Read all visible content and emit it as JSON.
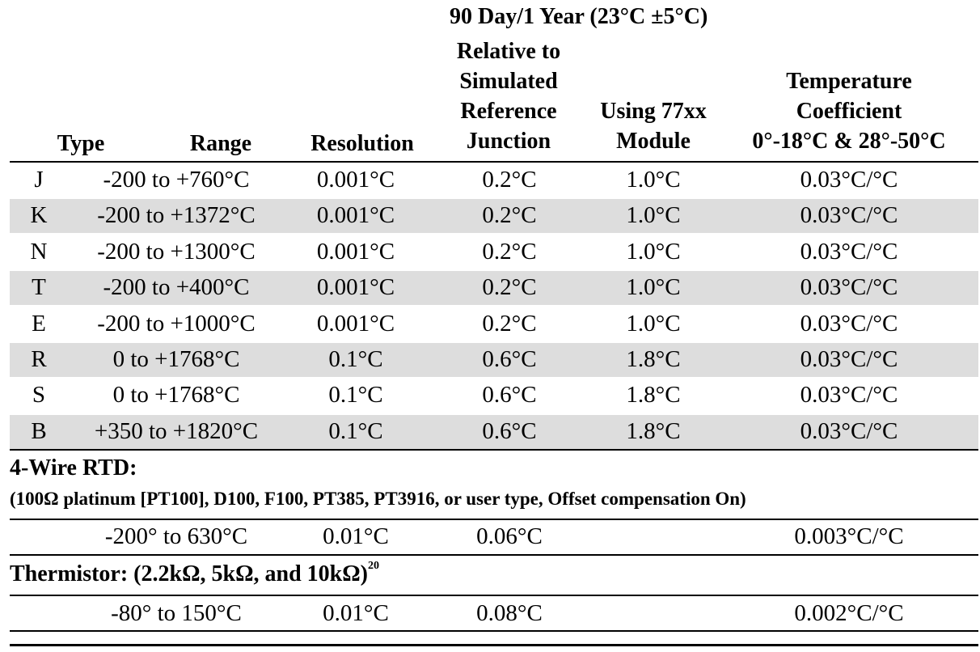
{
  "header": {
    "group_title": "90 Day/1 Year (23°C ±5°C)",
    "columns": {
      "type": "Type",
      "range": "Range",
      "resolution": "Resolution",
      "relative": [
        "Relative to",
        "Simulated",
        "Reference",
        "Junction"
      ],
      "module": [
        "Using 77xx",
        "Module"
      ],
      "tempco": [
        "Temperature",
        "Coefficient",
        "0°-18°C & 28°-50°C"
      ]
    }
  },
  "thermocouple_rows": [
    {
      "type": "J",
      "range": "-200 to +760°C",
      "resolution": "0.001°C",
      "relative": "0.2°C",
      "module": "1.0°C",
      "tempco": "0.03°C/°C",
      "shaded": false
    },
    {
      "type": "K",
      "range": "-200 to +1372°C",
      "resolution": "0.001°C",
      "relative": "0.2°C",
      "module": "1.0°C",
      "tempco": "0.03°C/°C",
      "shaded": true
    },
    {
      "type": "N",
      "range": "-200 to +1300°C",
      "resolution": "0.001°C",
      "relative": "0.2°C",
      "module": "1.0°C",
      "tempco": "0.03°C/°C",
      "shaded": false
    },
    {
      "type": "T",
      "range": "-200 to +400°C",
      "resolution": "0.001°C",
      "relative": "0.2°C",
      "module": "1.0°C",
      "tempco": "0.03°C/°C",
      "shaded": true
    },
    {
      "type": "E",
      "range": "-200 to +1000°C",
      "resolution": "0.001°C",
      "relative": "0.2°C",
      "module": "1.0°C",
      "tempco": "0.03°C/°C",
      "shaded": false
    },
    {
      "type": "R",
      "range": "0 to +1768°C",
      "resolution": "0.1°C",
      "relative": "0.6°C",
      "module": "1.8°C",
      "tempco": "0.03°C/°C",
      "shaded": true
    },
    {
      "type": "S",
      "range": "0 to +1768°C",
      "resolution": "0.1°C",
      "relative": "0.6°C",
      "module": "1.8°C",
      "tempco": "0.03°C/°C",
      "shaded": false
    },
    {
      "type": "B",
      "range": "+350 to +1820°C",
      "resolution": "0.1°C",
      "relative": "0.6°C",
      "module": "1.8°C",
      "tempco": "0.03°C/°C",
      "shaded": true
    }
  ],
  "rtd": {
    "title": "4-Wire RTD:",
    "subtitle": "(100Ω platinum [PT100], D100, F100, PT385, PT3916, or user type, Offset compensation On)",
    "row": {
      "range": "-200° to 630°C",
      "resolution": "0.01°C",
      "relative": "0.06°C",
      "tempco": "0.003°C/°C"
    }
  },
  "thermistor": {
    "title": "Thermistor: (2.2kΩ, 5kΩ, and 10kΩ)",
    "footnote": "20",
    "row": {
      "range": "-80° to 150°C",
      "resolution": "0.01°C",
      "relative": "0.08°C",
      "tempco": "0.002°C/°C"
    }
  }
}
